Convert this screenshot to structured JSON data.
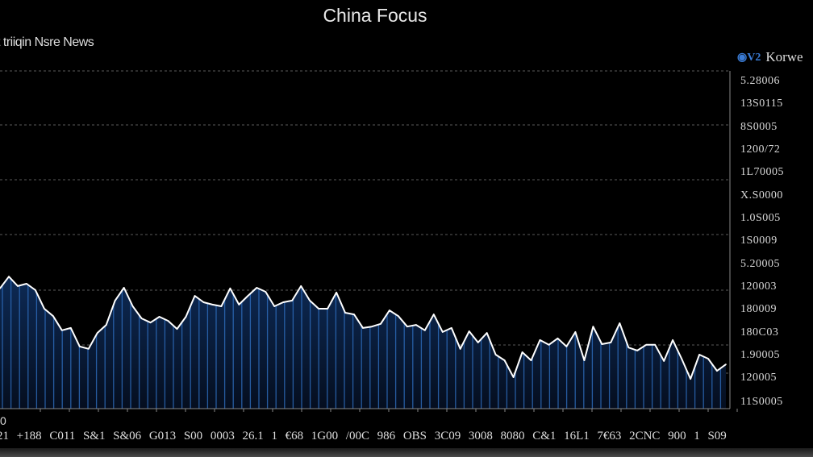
{
  "chart_data": {
    "type": "area",
    "title": "China Focus",
    "subtitle": "t triiqin Nsre News",
    "legend": {
      "label": "Korwe",
      "icon": "eye-chart-icon",
      "placement": "top-right"
    },
    "colors": {
      "line": "#ffffff",
      "fill": "#0b2147",
      "bars": "#2f6fc0",
      "grid": "#777777",
      "background": "#000000"
    },
    "grid": true,
    "ylim": [
      0,
      100
    ],
    "y_tick_labels": [
      "5.28006",
      "13S0115",
      "8S0005",
      "1200/72",
      "1L70005",
      "X.S0000",
      "1.0S005",
      "1S0009",
      "5.20005",
      "120003",
      "180009",
      "180C03",
      "1.90005",
      "120005",
      "11S0005"
    ],
    "x_tick_labels": [
      "21",
      "+188",
      "C011",
      "S&1",
      "S&06",
      "G013",
      "S00",
      "0003",
      "26.1",
      "1",
      "€68",
      "1G00",
      "/00C",
      "986",
      "OBS",
      "3C09",
      "3008",
      "8080",
      "C&1",
      "16L1",
      "7€63",
      "2CNC",
      "900",
      "1",
      "S09"
    ],
    "x_origin_label": "0",
    "values": [
      35.6,
      39.1,
      36.3,
      37.0,
      35.1,
      29.6,
      27.4,
      23.2,
      23.9,
      18.4,
      17.7,
      22.4,
      24.8,
      32.0,
      35.8,
      30.3,
      26.7,
      25.5,
      27.2,
      26.0,
      23.6,
      27.2,
      33.4,
      31.5,
      30.8,
      30.3,
      35.6,
      30.8,
      33.4,
      35.8,
      34.6,
      30.3,
      31.5,
      32.0,
      36.3,
      32.0,
      29.6,
      29.6,
      34.4,
      28.4,
      27.9,
      23.9,
      24.3,
      25.1,
      29.1,
      27.4,
      24.3,
      24.8,
      23.2,
      27.9,
      22.7,
      23.9,
      17.7,
      22.9,
      19.6,
      22.4,
      16.0,
      14.3,
      9.3,
      16.7,
      14.3,
      20.3,
      18.9,
      20.8,
      18.4,
      22.7,
      14.3,
      24.3,
      19.1,
      19.6,
      25.3,
      18.1,
      17.2,
      18.9,
      18.9,
      14.1,
      20.3,
      14.8,
      8.8,
      16.0,
      14.8,
      11.2,
      13.1
    ]
  }
}
